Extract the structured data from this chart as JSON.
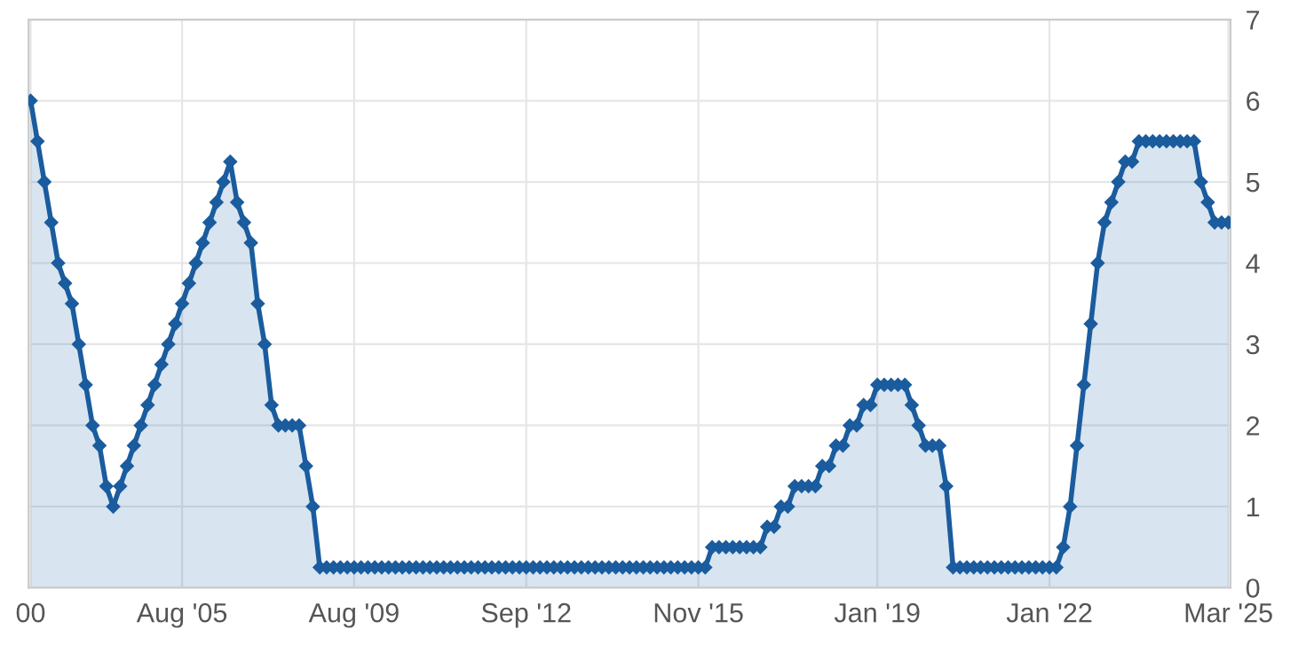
{
  "chart_data": {
    "type": "area",
    "marker": "diamond",
    "grid": true,
    "ylim": [
      0,
      7
    ],
    "yticks": [
      0,
      1,
      2,
      3,
      4,
      5,
      6,
      7
    ],
    "categories": [
      "00",
      null,
      null,
      null,
      null,
      null,
      null,
      null,
      null,
      null,
      null,
      null,
      null,
      null,
      null,
      null,
      null,
      null,
      null,
      null,
      null,
      null,
      "Aug '05",
      null,
      null,
      null,
      null,
      null,
      null,
      null,
      null,
      null,
      null,
      null,
      null,
      null,
      null,
      null,
      null,
      null,
      null,
      null,
      null,
      null,
      null,
      null,
      null,
      "Aug '09",
      null,
      null,
      null,
      null,
      null,
      null,
      null,
      null,
      null,
      null,
      null,
      null,
      null,
      null,
      null,
      null,
      null,
      null,
      null,
      null,
      null,
      null,
      null,
      null,
      "Sep '12",
      null,
      null,
      null,
      null,
      null,
      null,
      null,
      null,
      null,
      null,
      null,
      null,
      null,
      null,
      null,
      null,
      null,
      null,
      null,
      null,
      null,
      null,
      null,
      null,
      "Nov '15",
      null,
      null,
      null,
      null,
      null,
      null,
      null,
      null,
      null,
      null,
      null,
      null,
      null,
      null,
      null,
      null,
      null,
      null,
      null,
      null,
      null,
      null,
      null,
      null,
      null,
      "Jan '19",
      null,
      null,
      null,
      null,
      null,
      null,
      null,
      null,
      null,
      null,
      null,
      null,
      null,
      null,
      null,
      null,
      null,
      null,
      null,
      null,
      null,
      null,
      null,
      null,
      "Jan '22",
      null,
      null,
      null,
      null,
      null,
      null,
      null,
      null,
      null,
      null,
      null,
      null,
      null,
      null,
      null,
      null,
      null,
      null,
      null,
      null,
      null,
      null,
      null,
      null,
      null,
      "Mar '25"
    ],
    "series": [
      {
        "color": "#1a5c9e",
        "values": [
          6.0,
          5.5,
          5.0,
          4.5,
          4.0,
          3.75,
          3.5,
          3.0,
          2.5,
          2.0,
          1.75,
          1.25,
          1.0,
          1.25,
          1.5,
          1.75,
          2.0,
          2.25,
          2.5,
          2.75,
          3.0,
          3.25,
          3.5,
          3.75,
          4.0,
          4.25,
          4.5,
          4.75,
          5.0,
          5.25,
          4.75,
          4.5,
          4.25,
          3.5,
          3.0,
          2.25,
          2.0,
          2.0,
          2.0,
          2.0,
          1.5,
          1.0,
          0.25,
          0.25,
          0.25,
          0.25,
          0.25,
          0.25,
          0.25,
          0.25,
          0.25,
          0.25,
          0.25,
          0.25,
          0.25,
          0.25,
          0.25,
          0.25,
          0.25,
          0.25,
          0.25,
          0.25,
          0.25,
          0.25,
          0.25,
          0.25,
          0.25,
          0.25,
          0.25,
          0.25,
          0.25,
          0.25,
          0.25,
          0.25,
          0.25,
          0.25,
          0.25,
          0.25,
          0.25,
          0.25,
          0.25,
          0.25,
          0.25,
          0.25,
          0.25,
          0.25,
          0.25,
          0.25,
          0.25,
          0.25,
          0.25,
          0.25,
          0.25,
          0.25,
          0.25,
          0.25,
          0.25,
          0.25,
          0.25,
          0.5,
          0.5,
          0.5,
          0.5,
          0.5,
          0.5,
          0.5,
          0.5,
          0.75,
          0.75,
          1.0,
          1.0,
          1.25,
          1.25,
          1.25,
          1.25,
          1.5,
          1.5,
          1.75,
          1.75,
          2.0,
          2.0,
          2.25,
          2.25,
          2.5,
          2.5,
          2.5,
          2.5,
          2.5,
          2.25,
          2.0,
          1.75,
          1.75,
          1.75,
          1.25,
          0.25,
          0.25,
          0.25,
          0.25,
          0.25,
          0.25,
          0.25,
          0.25,
          0.25,
          0.25,
          0.25,
          0.25,
          0.25,
          0.25,
          0.25,
          0.25,
          0.5,
          1.0,
          1.75,
          2.5,
          3.25,
          4.0,
          4.5,
          4.75,
          5.0,
          5.25,
          5.25,
          5.5,
          5.5,
          5.5,
          5.5,
          5.5,
          5.5,
          5.5,
          5.5,
          5.5,
          5.0,
          4.75,
          4.5,
          4.5,
          4.5
        ]
      }
    ]
  }
}
